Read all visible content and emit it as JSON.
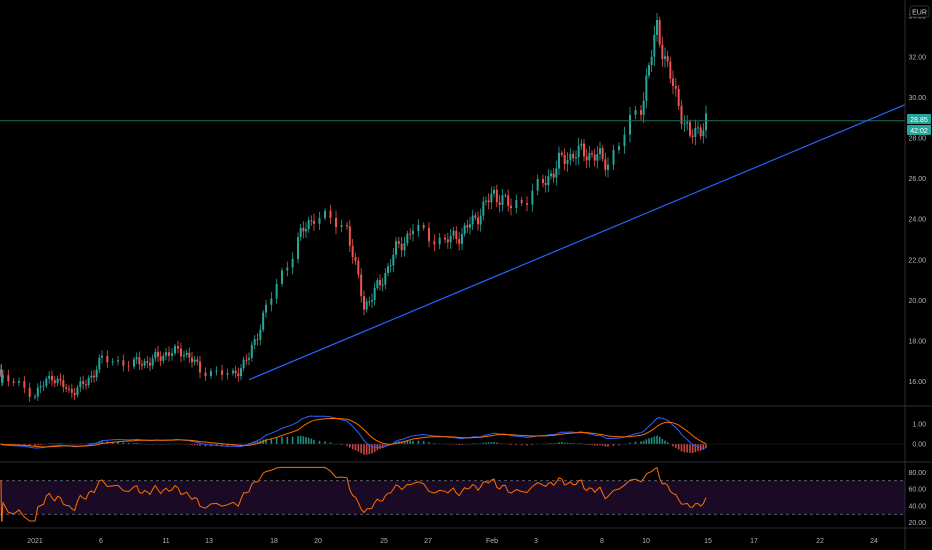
{
  "currency": "EUR",
  "price_tag": "28.85",
  "countdown_tag": "42:02",
  "colors": {
    "background": "#000000",
    "up": "#26a69a",
    "down": "#ef5350",
    "trendline": "#2962ff",
    "horizontal_line": "#1f6f5f",
    "macd_line": "#2962ff",
    "signal_line": "#ff6d00",
    "rsi_line": "#ff6d00",
    "rsi_band": "#1a0a26",
    "price_tag_bg": "#26a69a",
    "grid": "#1e222d"
  },
  "chart_data": [
    {
      "type": "candlestick",
      "panel": "price",
      "currency": "EUR",
      "y_ticks": [
        "16.00",
        "18.00",
        "20.00",
        "22.00",
        "24.00",
        "26.00",
        "28.00",
        "30.00",
        "32.00",
        "34.00"
      ],
      "ylim": [
        15.0,
        34.6
      ],
      "x_ticks": [
        "2021",
        "6",
        "11",
        "13",
        "18",
        "20",
        "25",
        "27",
        "Feb",
        "3",
        "8",
        "10",
        "15",
        "17",
        "22",
        "24"
      ],
      "trading_days": [
        "Dec 31",
        "Jan 4",
        "Jan 5",
        "Jan 6",
        "Jan 7",
        "Jan 8",
        "Jan 11",
        "Jan 12",
        "Jan 13",
        "Jan 14",
        "Jan 15",
        "Jan 18",
        "Jan 19",
        "Jan 20",
        "Jan 21",
        "Jan 22",
        "Jan 25",
        "Jan 26",
        "Jan 27",
        "Jan 28",
        "Jan 29",
        "Feb 1",
        "Feb 2",
        "Feb 3",
        "Feb 4",
        "Feb 5",
        "Feb 8",
        "Feb 9",
        "Feb 10",
        "Feb 11",
        "Feb 12",
        "Feb 15",
        "Feb 16",
        "Feb 17",
        "Feb 18",
        "Feb 19"
      ],
      "daily_close_approx": [
        16.2,
        15.4,
        16.3,
        15.5,
        15.9,
        17.1,
        16.9,
        17.0,
        17.4,
        17.5,
        16.6,
        16.3,
        17.2,
        19.6,
        23.0,
        24.2,
        23.6,
        19.7,
        20.8,
        22.5,
        23.5,
        22.9,
        23.3,
        24.2,
        25.3,
        24.6,
        25.7,
        26.8,
        27.3,
        27.2,
        26.8,
        29.6,
        33.4,
        30.5,
        28.0,
        28.85
      ],
      "current_price": 28.85,
      "horizontal_level": 28.85,
      "trendline": {
        "from": {
          "date": "Jan 19",
          "price": 16.1
        },
        "to": {
          "date": "Feb 24",
          "price": 29.0
        }
      }
    },
    {
      "type": "macd",
      "panel": "macd",
      "y_ticks": [
        "1.00",
        "0.00"
      ],
      "ylim": [
        -0.8,
        1.8
      ],
      "series": [
        {
          "values": "MACD line"
        },
        {
          "values": "signal line"
        },
        {
          "values": "histogram"
        }
      ]
    },
    {
      "type": "line",
      "panel": "rsi",
      "y_ticks": [
        "80.00",
        "60.00",
        "40.00",
        "20.00"
      ],
      "ylim": [
        16,
        90
      ],
      "bands": [
        30,
        70
      ]
    }
  ]
}
